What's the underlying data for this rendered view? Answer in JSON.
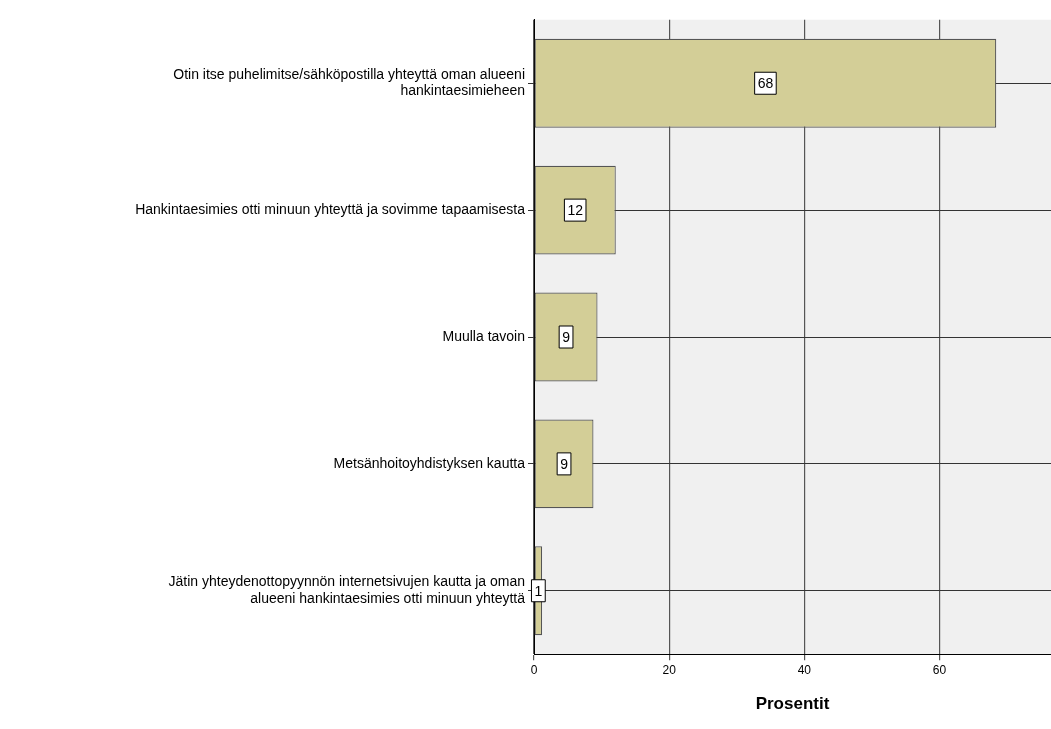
{
  "chart_data": {
    "type": "bar",
    "orientation": "horizontal",
    "xlabel": "Prosentit",
    "categories": [
      "Otin itse puhelimitse/sähköpostilla yhteyttä oman alueeni hankintaesimieheen",
      "Hankintaesimies otti minuun yhteyttä ja sovimme tapaamisesta",
      "Muulla tavoin",
      "Metsänhoitoyhdistyksen kautta",
      "Jätin yhteydenottopyynnön internetsivujen kautta ja oman alueeni hankintaesimies otti minuun yhteyttä"
    ],
    "values": [
      68.4,
      12.1,
      9.4,
      8.8,
      1.2
    ],
    "value_labels": [
      "68",
      "12",
      "9",
      "9",
      "1"
    ],
    "color": "#d3ce97",
    "xlim": [
      0,
      76.5
    ],
    "xticks": [
      0,
      20,
      40,
      60
    ],
    "grid": true
  }
}
